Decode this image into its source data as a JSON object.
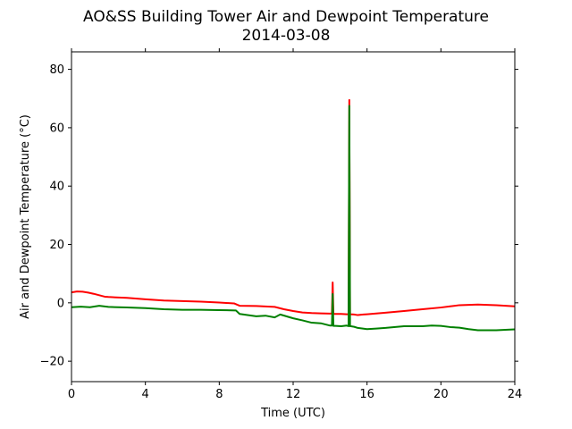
{
  "chart_data": {
    "type": "line",
    "title": "AO&SS Building Tower Air and Dewpoint Temperature",
    "subtitle": "2014-03-08",
    "xlabel": "Time (UTC)",
    "ylabel": "Air and Dewpoint Temperature (°C)",
    "xlim": [
      0,
      24
    ],
    "ylim": [
      -27,
      86
    ],
    "xticks": [
      0,
      4,
      8,
      12,
      16,
      20,
      24
    ],
    "yticks": [
      -20,
      0,
      20,
      40,
      60,
      80
    ],
    "grid": false,
    "legend": "none",
    "series": [
      {
        "color": "#ff0000",
        "x": [
          0.0,
          0.3,
          0.6,
          0.9,
          1.2,
          1.5,
          1.8,
          2.0,
          3.0,
          4.0,
          5.0,
          6.0,
          7.0,
          8.0,
          8.8,
          9.1,
          10.0,
          11.0,
          11.5,
          12.0,
          12.5,
          13.0,
          13.5,
          14.0,
          14.1,
          14.14,
          14.18,
          14.22,
          14.3,
          14.6,
          14.9,
          15.0,
          15.04,
          15.08,
          15.12,
          15.3,
          15.5,
          15.8,
          16.0,
          17.0,
          18.0,
          19.0,
          20.0,
          20.5,
          21.0,
          22.0,
          23.0,
          24.0
        ],
        "y": [
          3.6,
          3.9,
          3.8,
          3.5,
          3.1,
          2.6,
          2.1,
          2.0,
          1.7,
          1.2,
          0.8,
          0.6,
          0.4,
          0.1,
          -0.2,
          -1.0,
          -1.1,
          -1.4,
          -2.2,
          -2.8,
          -3.3,
          -3.5,
          -3.6,
          -3.7,
          -3.7,
          7.0,
          -3.8,
          -3.8,
          -3.8,
          -3.8,
          -3.9,
          -3.9,
          69.5,
          -3.9,
          -3.9,
          -4.0,
          -4.2,
          -4.0,
          -3.9,
          -3.4,
          -2.8,
          -2.2,
          -1.6,
          -1.2,
          -0.8,
          -0.6,
          -0.8,
          -1.2
        ]
      },
      {
        "color": "#008000",
        "x": [
          0.0,
          0.5,
          1.0,
          1.5,
          2.0,
          3.0,
          4.0,
          5.0,
          6.0,
          7.0,
          8.0,
          8.9,
          9.1,
          10.0,
          10.5,
          11.0,
          11.3,
          12.0,
          12.5,
          13.0,
          13.5,
          14.0,
          14.1,
          14.14,
          14.18,
          14.22,
          14.3,
          14.6,
          14.9,
          15.0,
          15.04,
          15.08,
          15.12,
          15.3,
          15.5,
          16.0,
          16.5,
          17.0,
          18.0,
          19.0,
          19.5,
          20.0,
          20.5,
          21.0,
          21.5,
          22.0,
          23.0,
          24.0
        ],
        "y": [
          -1.5,
          -1.3,
          -1.5,
          -1.0,
          -1.4,
          -1.6,
          -1.8,
          -2.2,
          -2.4,
          -2.4,
          -2.5,
          -2.6,
          -3.8,
          -4.6,
          -4.4,
          -5.0,
          -4.0,
          -5.3,
          -6.0,
          -6.8,
          -7.0,
          -7.8,
          -7.8,
          3.0,
          -7.9,
          -7.9,
          -7.9,
          -8.0,
          -7.8,
          -8.0,
          67.5,
          -8.0,
          -8.0,
          -8.2,
          -8.6,
          -9.0,
          -8.8,
          -8.6,
          -8.0,
          -8.0,
          -7.8,
          -7.9,
          -8.3,
          -8.5,
          -9.0,
          -9.4,
          -9.4,
          -9.1
        ]
      }
    ]
  }
}
